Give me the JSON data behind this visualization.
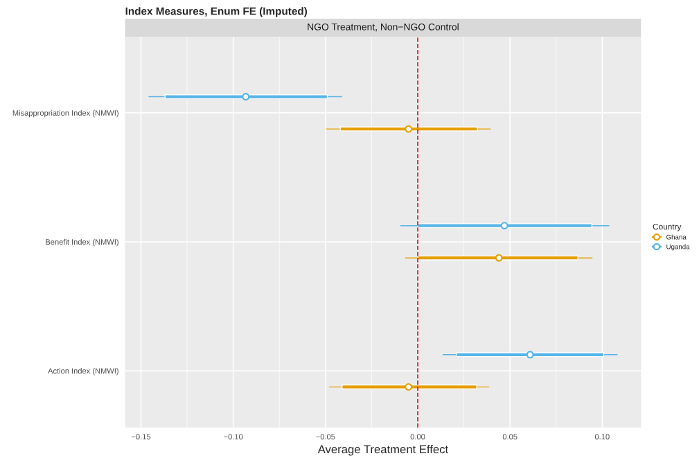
{
  "chart_data": {
    "type": "scatter",
    "title": "Index Measures, Enum FE (Imputed)",
    "subtitle": "NGO Treatment, Non−NGO Control",
    "orientation": "horizontal",
    "categories": [
      "Misappropriation Index (NMWI)",
      "Benefit Index (NMWI)",
      "Action Index (NMWI)"
    ],
    "series": [
      {
        "name": "Ghana",
        "color": "#e69f00",
        "values": [
          -0.005,
          0.044,
          -0.005
        ],
        "errors": [
          [
            -0.0496,
            0.0395
          ],
          [
            -0.0068,
            0.0947
          ],
          [
            -0.0481,
            0.0387
          ]
        ]
      },
      {
        "type": "bar",
        "color": "#e69f00",
        "base": [
          -0.042,
          0.0,
          -0.041
        ],
        "values": [
          0.0743,
          0.0868,
          0.073
        ]
      },
      {
        "name": "Uganda",
        "color": "#56b4e9",
        "values": [
          -0.0932,
          0.047,
          0.0609
        ],
        "errors": [
          [
            -0.1459,
            -0.041
          ],
          [
            -0.0094,
            0.1038
          ],
          [
            0.0135,
            0.1083
          ]
        ]
      },
      {
        "type": "bar",
        "color": "#56b4e9",
        "base": [
          -0.137,
          0.0,
          0.021
        ],
        "values": [
          0.088,
          0.0944,
          0.0798
        ]
      }
    ],
    "xlabel": "Average Treatment Effect",
    "legend_title": "Country",
    "xlim": [
      -0.1586,
      0.121
    ],
    "xticks": [
      {
        "value": -0.15,
        "label": "−0.15"
      },
      {
        "value": -0.1,
        "label": "−0.10"
      },
      {
        "value": -0.05,
        "label": "−0.05"
      },
      {
        "value": 0,
        "label": "0.00"
      },
      {
        "value": 0.05,
        "label": "0.05"
      },
      {
        "value": 0.1,
        "label": "0.10"
      }
    ],
    "ref_lines": [
      {
        "axis": "x",
        "value": 0,
        "color": "#ff0000",
        "line_style": "dashed"
      }
    ],
    "grid": true,
    "legend": "right",
    "marker": "circle"
  }
}
